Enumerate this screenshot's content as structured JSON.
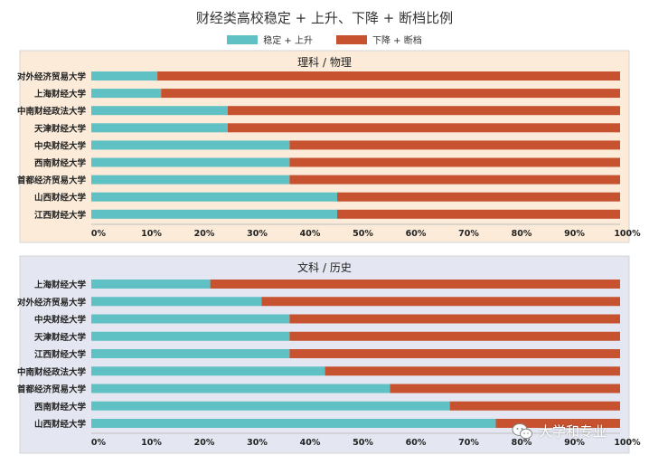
{
  "title": "财经类高校稳定 + 上升、下降 + 断档比例",
  "legend": {
    "stable": "稳定 + 上升",
    "decline": "下降 + 断档"
  },
  "colors": {
    "stable": "#5fc1c4",
    "decline": "#c75230",
    "panel1_bg": "#fbebd8",
    "panel2_bg": "#e4e6f1"
  },
  "watermark": {
    "text": "大学和专业",
    "icon": "wechat-icon"
  },
  "chart_data": [
    {
      "type": "bar",
      "orientation": "horizontal",
      "stacked": true,
      "title": "理科 / 物理",
      "categories": [
        "对外经济贸易大学",
        "上海财经大学",
        "中南财经政法大学",
        "天津财经大学",
        "中央财经大学",
        "西南财经大学",
        "首都经济贸易大学",
        "山西财经大学",
        "江西财经大学"
      ],
      "series": [
        {
          "name": "稳定 + 上升",
          "values": [
            12.5,
            13.2,
            25.8,
            25.8,
            37.5,
            37.5,
            37.5,
            46.5,
            46.5
          ]
        },
        {
          "name": "下降 + 断档",
          "values": [
            87.5,
            86.8,
            74.2,
            74.2,
            62.5,
            62.5,
            62.5,
            53.5,
            53.5
          ]
        }
      ],
      "xlim": [
        0,
        100
      ],
      "ticks": [
        "0%",
        "10%",
        "20%",
        "30%",
        "40%",
        "50%",
        "60%",
        "70%",
        "80%",
        "90%",
        "100%"
      ]
    },
    {
      "type": "bar",
      "orientation": "horizontal",
      "stacked": true,
      "title": "文科 / 历史",
      "categories": [
        "上海财经大学",
        "对外经济贸易大学",
        "中央财经大学",
        "天津财经大学",
        "江西财经大学",
        "中南财经政法大学",
        "首都经济贸易大学",
        "西南财经大学",
        "山西财经大学"
      ],
      "series": [
        {
          "name": "稳定 + 上升",
          "values": [
            22.5,
            32.2,
            37.5,
            37.5,
            37.5,
            44.2,
            56.5,
            67.8,
            76.5
          ]
        },
        {
          "name": "下降 + 断档",
          "values": [
            77.5,
            67.8,
            62.5,
            62.5,
            62.5,
            55.8,
            43.5,
            32.2,
            23.5
          ]
        }
      ],
      "xlim": [
        0,
        100
      ],
      "ticks": [
        "0%",
        "10%",
        "20%",
        "30%",
        "40%",
        "50%",
        "60%",
        "70%",
        "80%",
        "90%",
        "100%"
      ]
    }
  ]
}
